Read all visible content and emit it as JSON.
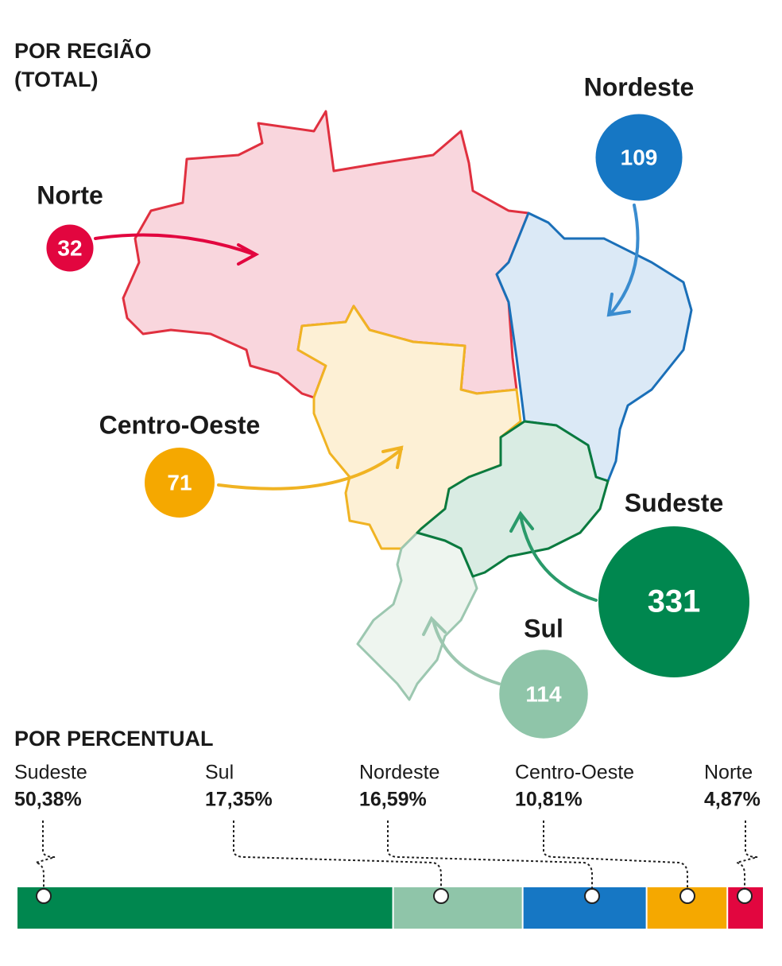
{
  "chart_data": [
    {
      "type": "bubble",
      "title": [
        "POR REGIÃO",
        "(TOTAL)"
      ],
      "categories": [
        "Norte",
        "Nordeste",
        "Centro-Oeste",
        "Sudeste",
        "Sul"
      ],
      "values": [
        32,
        109,
        71,
        331,
        114
      ],
      "colors": [
        "#e2063f",
        "#1677c4",
        "#f5a800",
        "#00874f",
        "#8fc5a9"
      ]
    },
    {
      "type": "stacked-bar",
      "title": "POR PERCENTUAL",
      "categories": [
        "Sudeste",
        "Sul",
        "Nordeste",
        "Centro-Oeste",
        "Norte"
      ],
      "values": [
        50.38,
        17.35,
        16.59,
        10.81,
        4.87
      ],
      "value_labels": [
        "50,38%",
        "17,35%",
        "16,59%",
        "10,81%",
        "4,87%"
      ],
      "colors": [
        "#00874f",
        "#8fc5a9",
        "#1677c4",
        "#f5a800",
        "#e2063f"
      ]
    }
  ]
}
